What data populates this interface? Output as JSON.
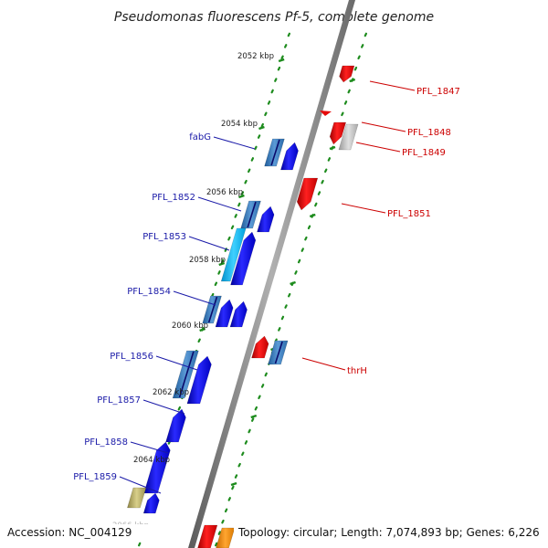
{
  "title": "Pseudomonas fluorescens Pf-5, complete genome",
  "accession": "Accession: NC_004129",
  "topology": "Topology: circular; Length: 7,074,893 bp; Genes: 6,226",
  "kbp_labels": [
    "2052 kbp",
    "2054 kbp",
    "2056 kbp",
    "2058 kbp",
    "2060 kbp",
    "2062 kbp",
    "2064 kbp",
    "2066 kbp"
  ],
  "left_labels": [
    "fabG",
    "PFL_1852",
    "PFL_1853",
    "PFL_1854",
    "PFL_1856",
    "PFL_1857",
    "PFL_1858",
    "PFL_1859"
  ],
  "right_labels": [
    "PFL_1847",
    "PFL_1848",
    "PFL_1849",
    "PFL_1851",
    "thrH"
  ],
  "colors": {
    "backbone": "#8a8a8a",
    "forward": "#0a0ae6",
    "reverse": "#e60a0a",
    "teal": "#3a7bbf",
    "cyan": "#12b4ee",
    "grey": "#bdbdbd",
    "olive": "#b5ab63",
    "orange": "#ff8c00",
    "tick": "#1e8c1e",
    "label_left": "#1a1aa8",
    "label_right": "#cc0000"
  }
}
